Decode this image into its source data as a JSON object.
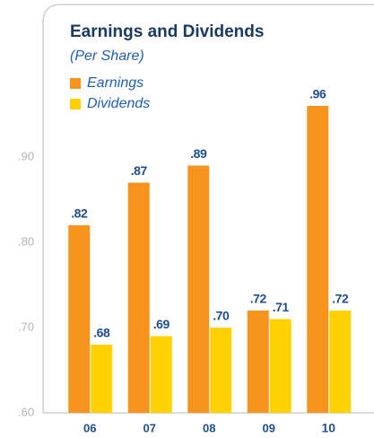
{
  "chart_data": {
    "type": "bar",
    "title": "Earnings and Dividends",
    "subtitle": "(Per Share)",
    "categories": [
      "06",
      "07",
      "08",
      "09",
      "10"
    ],
    "series": [
      {
        "name": "Earnings",
        "color": "#f7941d",
        "values": [
          0.82,
          0.87,
          0.89,
          0.72,
          0.96
        ],
        "value_labels": [
          ".82",
          ".87",
          ".89",
          ".72",
          ".96"
        ]
      },
      {
        "name": "Dividends",
        "color": "#ffd200",
        "values": [
          0.68,
          0.69,
          0.7,
          0.71,
          0.72
        ],
        "value_labels": [
          ".68",
          ".69",
          ".70",
          ".71",
          ".72"
        ]
      }
    ],
    "ylim": [
      0.6,
      1.08
    ],
    "yticks": [
      {
        "value": 0.6,
        "label": ".60"
      },
      {
        "value": 0.7,
        "label": ".70"
      },
      {
        "value": 0.8,
        "label": ".80"
      },
      {
        "value": 0.9,
        "label": ".90"
      }
    ],
    "grid": false
  }
}
